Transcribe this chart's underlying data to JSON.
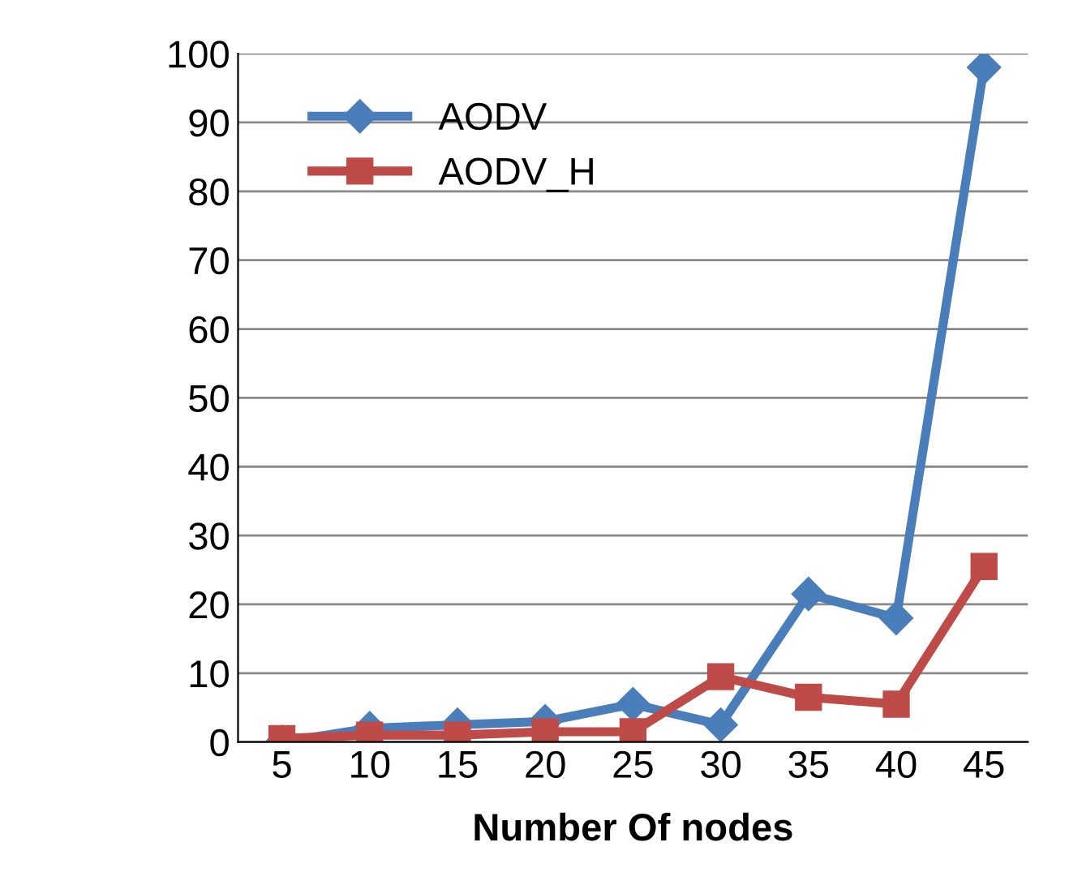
{
  "chart_data": {
    "type": "line",
    "xlabel": "Number Of nodes",
    "categories": [
      "5",
      "10",
      "15",
      "20",
      "25",
      "30",
      "35",
      "40",
      "45"
    ],
    "series": [
      {
        "name": "AODV",
        "color": "#4a7ebb",
        "marker": "diamond",
        "values": [
          0,
          2,
          2.5,
          3,
          5.5,
          2.5,
          21.5,
          18,
          98
        ]
      },
      {
        "name": "AODV_H",
        "color": "#be4b48",
        "marker": "square",
        "values": [
          0.5,
          1,
          1,
          1.5,
          1.5,
          9.5,
          6.5,
          5.5,
          25.5
        ]
      }
    ],
    "ylim": [
      0,
      100
    ],
    "yticks": [
      0,
      10,
      20,
      30,
      40,
      50,
      60,
      70,
      80,
      90,
      100
    ],
    "grid": "y",
    "legend": "top left"
  }
}
